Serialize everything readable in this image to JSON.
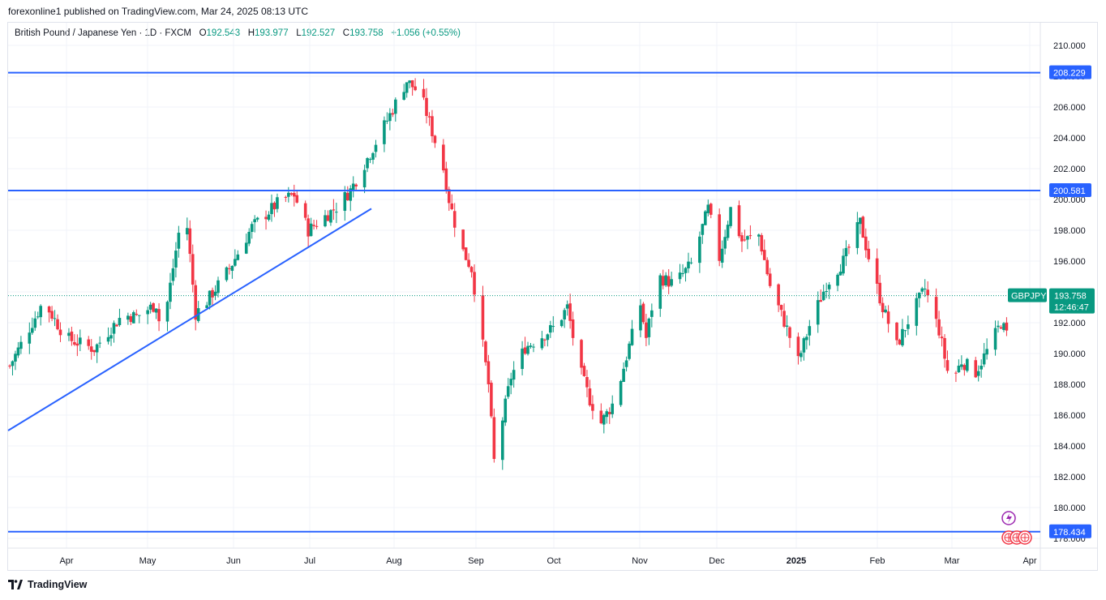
{
  "header": {
    "publish_line": "forexonline1 published on TradingView.com, Mar 24, 2025 08:13 UTC"
  },
  "legend": {
    "symbol_text": "British Pound / Japanese Yen · 1D · FXCM",
    "o_label": "O",
    "o_value": "192.543",
    "h_label": "H",
    "h_value": "193.977",
    "l_label": "L",
    "l_value": "192.527",
    "c_label": "C",
    "c_value": "193.758",
    "change": "+1.056 (+0.55%)"
  },
  "footer": {
    "brand": "TradingView"
  },
  "colors": {
    "up": "#089981",
    "down": "#f23645",
    "lines": "#2962ff",
    "grid": "#f0f3fa"
  },
  "chart_data": {
    "type": "candlestick",
    "symbol": "GBPJPY",
    "interval": "1D",
    "ylim": [
      176.0,
      211.6
    ],
    "y_ticks": [
      "178.000",
      "180.000",
      "182.000",
      "184.000",
      "186.000",
      "188.000",
      "190.000",
      "192.000",
      "194.000",
      "196.000",
      "198.000",
      "200.000",
      "202.000",
      "204.000",
      "206.000",
      "208.000",
      "210.000"
    ],
    "x_ticks": [
      "Apr",
      "May",
      "Jun",
      "Jul",
      "Aug",
      "Sep",
      "Oct",
      "Nov",
      "Dec",
      "2025",
      "Feb",
      "Mar",
      "Apr"
    ],
    "horizontal_levels": [
      {
        "price": 208.229,
        "label": "208.229"
      },
      {
        "price": 200.581,
        "label": "200.581"
      },
      {
        "price": 178.434,
        "label": "178.434"
      }
    ],
    "trendline": {
      "from": [
        "Mar 2024",
        185.0
      ],
      "to": [
        "Jul 2024",
        199.4
      ]
    },
    "last_price": {
      "symbol_label": "GBPJPY",
      "price": "193.758",
      "countdown": "12:46:47"
    },
    "path": [
      [
        0,
        189.2
      ],
      [
        12,
        193.4
      ],
      [
        20,
        191.0
      ],
      [
        30,
        190.3
      ],
      [
        40,
        192.5
      ],
      [
        45,
        192.4
      ],
      [
        52,
        193.2
      ],
      [
        54,
        191.1
      ],
      [
        60,
        197.8
      ],
      [
        63,
        198.2
      ],
      [
        66,
        192.6
      ],
      [
        70,
        193.4
      ],
      [
        78,
        195.5
      ],
      [
        86,
        198.2
      ],
      [
        96,
        199.9
      ],
      [
        101,
        200.3
      ],
      [
        106,
        198.0
      ],
      [
        116,
        199.5
      ],
      [
        121,
        200.6
      ],
      [
        128,
        203.0
      ],
      [
        135,
        205.5
      ],
      [
        141,
        207.7
      ],
      [
        146,
        206.8
      ],
      [
        149,
        205.0
      ],
      [
        154,
        202.0
      ],
      [
        156,
        200.0
      ],
      [
        160,
        197.0
      ],
      [
        164,
        195.5
      ],
      [
        166,
        193.0
      ],
      [
        170,
        188.0
      ],
      [
        172,
        183.0
      ],
      [
        178,
        188.5
      ],
      [
        183,
        190.4
      ],
      [
        188,
        191.0
      ],
      [
        194,
        191.8
      ],
      [
        198,
        193.0
      ],
      [
        202,
        189.2
      ],
      [
        206,
        187.0
      ],
      [
        210,
        185.5
      ],
      [
        215,
        187.0
      ],
      [
        220,
        190.5
      ],
      [
        224,
        193.2
      ],
      [
        226,
        191.0
      ],
      [
        230,
        195.0
      ],
      [
        236,
        194.5
      ],
      [
        242,
        195.8
      ],
      [
        248,
        199.4
      ],
      [
        252,
        196.2
      ],
      [
        256,
        199.4
      ],
      [
        260,
        197.3
      ],
      [
        266,
        197.7
      ],
      [
        270,
        194.4
      ],
      [
        276,
        191.6
      ],
      [
        280,
        189.5
      ],
      [
        284,
        191.8
      ],
      [
        290,
        194.5
      ],
      [
        296,
        196.0
      ],
      [
        302,
        198.5
      ],
      [
        306,
        195.5
      ],
      [
        310,
        193.0
      ],
      [
        315,
        190.5
      ],
      [
        320,
        192.5
      ],
      [
        325,
        194.2
      ],
      [
        330,
        191.5
      ],
      [
        334,
        188.0
      ],
      [
        338,
        189.5
      ],
      [
        343,
        188.8
      ],
      [
        348,
        190.5
      ],
      [
        352,
        192.0
      ],
      [
        356,
        190.5
      ],
      [
        360,
        194.2
      ],
      [
        362,
        192.5
      ],
      [
        365,
        193.76
      ]
    ]
  }
}
